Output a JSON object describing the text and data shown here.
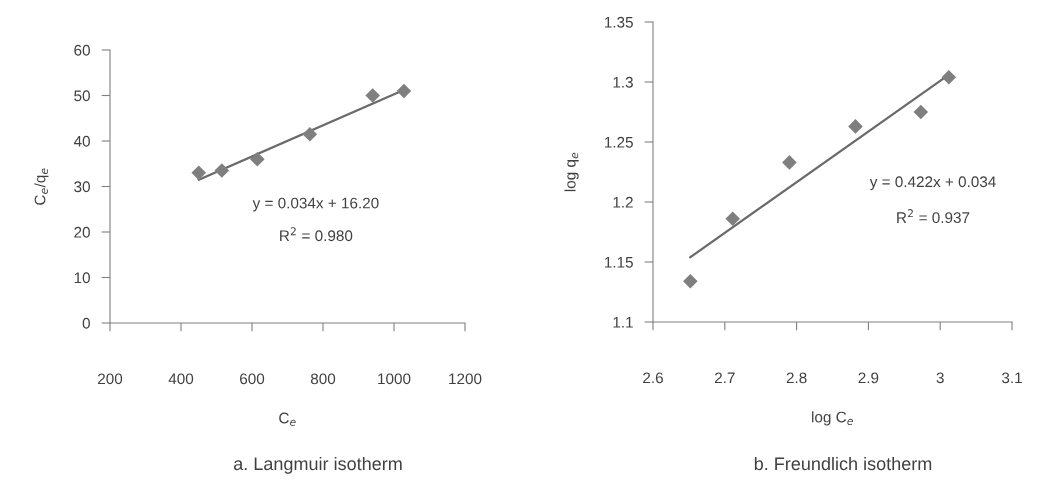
{
  "chart_data": [
    {
      "type": "scatter",
      "title": "a. Langmuir isotherm",
      "xlabel": "C$_{e}$",
      "ylabel": "C$_{e}$/q$_{e}$",
      "marker": "diamond",
      "grid": false,
      "legend": false,
      "xlim": [
        200,
        1200
      ],
      "xticks": [
        200,
        400,
        600,
        800,
        1000,
        1200
      ],
      "ylim": [
        0,
        60
      ],
      "yticks": [
        0,
        10,
        20,
        30,
        40,
        50,
        60
      ],
      "annotations": [
        "y = 0.034x + 16.20",
        "R$^{2}$ = 0.980"
      ],
      "series": [
        {
          "color": "#7f7f7f",
          "x": [
            450,
            515,
            615,
            763,
            940,
            1028
          ],
          "values": [
            33,
            33.5,
            36,
            41.5,
            50,
            51
          ]
        },
        {
          "type": "line",
          "color": "#6a6a6a",
          "marker": "none",
          "x": [
            450,
            1028
          ],
          "values": [
            31.5,
            51.2
          ]
        }
      ]
    },
    {
      "type": "scatter",
      "title": "b. Freundlich isotherm",
      "xlabel": "log C$_{e}$",
      "ylabel": "log q$_{e}$",
      "marker": "diamond",
      "grid": false,
      "legend": false,
      "xlim": [
        2.6,
        3.1
      ],
      "xticks": [
        2.6,
        2.7,
        2.8,
        2.9,
        3,
        3.1
      ],
      "ylim": [
        1.1,
        1.35
      ],
      "yticks": [
        1.1,
        1.15,
        1.2,
        1.25,
        1.3,
        1.35
      ],
      "annotations": [
        "y = 0.422x + 0.034",
        "R$^{2}$ = 0.937"
      ],
      "series": [
        {
          "color": "#7f7f7f",
          "x": [
            2.652,
            2.711,
            2.79,
            2.882,
            2.973,
            3.012
          ],
          "values": [
            1.134,
            1.186,
            1.233,
            1.263,
            1.275,
            1.304
          ]
        },
        {
          "type": "line",
          "color": "#6a6a6a",
          "marker": "none",
          "x": [
            2.652,
            3.012
          ],
          "values": [
            1.154,
            1.306
          ]
        }
      ]
    }
  ]
}
